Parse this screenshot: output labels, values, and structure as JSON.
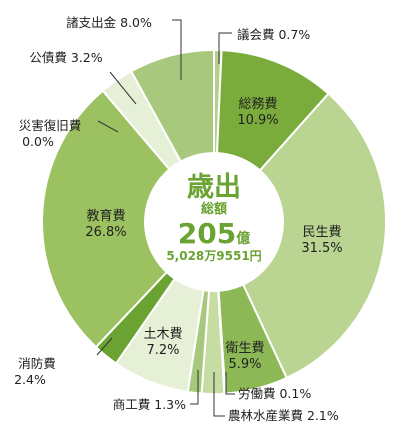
{
  "chart_data": {
    "type": "pie",
    "donut": true,
    "direction": "clockwise",
    "start": "top",
    "center": {
      "title": "歳出",
      "subtitle": "総額",
      "total": "205",
      "total_unit": "億",
      "total_exact": "5,028万9551円"
    },
    "slices": [
      {
        "name": "議会費",
        "value": 0.7,
        "label": "議会費 0.7%",
        "color": "#b7cf8c"
      },
      {
        "name": "総務費",
        "value": 10.9,
        "label_name": "総務費",
        "label_value": "10.9%",
        "color": "#7aac3c"
      },
      {
        "name": "民生費",
        "value": 31.5,
        "label_name": "民生費",
        "label_value": "31.5%",
        "color": "#b9d591"
      },
      {
        "name": "衛生費",
        "value": 5.9,
        "label_name": "衛生費",
        "label_value": "5.9%",
        "color": "#8cb955"
      },
      {
        "name": "労働費",
        "value": 0.1,
        "label": "労働費 0.1%",
        "color": "#c3dba0"
      },
      {
        "name": "農林水産業費",
        "value": 2.1,
        "label": "農林水産業費 2.1%",
        "color": "#c5dca3"
      },
      {
        "name": "商工費",
        "value": 1.3,
        "label": "商工費 1.3%",
        "color": "#a8c97d"
      },
      {
        "name": "土木費",
        "value": 7.2,
        "label_name": "土木費",
        "label_value": "7.2%",
        "color": "#e6f0d6"
      },
      {
        "name": "消防費",
        "value": 2.4,
        "label_name": "消防費",
        "label_value": "2.4%",
        "color": "#6aa332"
      },
      {
        "name": "教育費",
        "value": 26.8,
        "label_name": "教育費",
        "label_value": "26.8%",
        "color": "#9bc161"
      },
      {
        "name": "災害復旧費",
        "value": 0.0,
        "label_name": "災害復旧費",
        "label_value": "0.0%",
        "color": "#9bc161"
      },
      {
        "name": "公債費",
        "value": 3.2,
        "label": "公債費 3.2%",
        "color": "#e6f0d6"
      },
      {
        "name": "諸支出金",
        "value": 8.0,
        "label": "諸支出金 8.0%",
        "color": "#a8c97d"
      }
    ]
  },
  "colors": {
    "accent": "#7aac3c",
    "center_text": "#6aa332"
  }
}
